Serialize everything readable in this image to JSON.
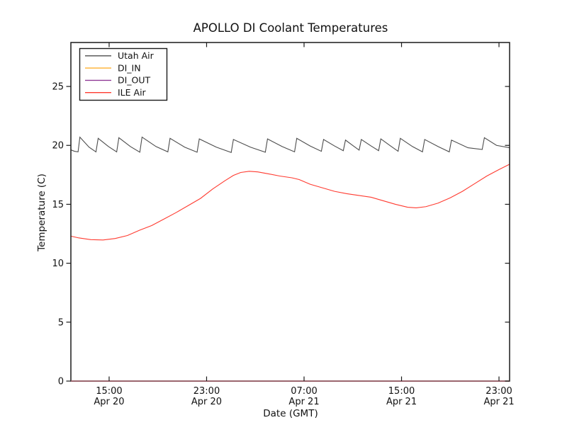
{
  "title": "APOLLO DI Coolant Temperatures",
  "axes": {
    "xlabel": "Date (GMT)",
    "ylabel": "Temperature (C)",
    "x_range_hours": [
      11.86,
      47.87
    ],
    "y_range": [
      0,
      28.73
    ],
    "yticks": [
      0,
      5,
      10,
      15,
      20,
      25
    ],
    "xticks": [
      {
        "hour": 15,
        "time": "15:00",
        "date": "Apr 20"
      },
      {
        "hour": 23,
        "time": "23:00",
        "date": "Apr 20"
      },
      {
        "hour": 31,
        "time": "07:00",
        "date": "Apr 21"
      },
      {
        "hour": 39,
        "time": "15:00",
        "date": "Apr 21"
      },
      {
        "hour": 47,
        "time": "23:00",
        "date": "Apr 21"
      }
    ],
    "grid": false
  },
  "legend": {
    "position": "upper-left",
    "items": [
      {
        "label": "Utah Air",
        "color": "#4d4d4d"
      },
      {
        "label": "DI_IN",
        "color": "#ffb02e"
      },
      {
        "label": "DI_OUT",
        "color": "#8f3a96"
      },
      {
        "label": "ILE Air",
        "color": "#ff3b30"
      }
    ]
  },
  "chart_data": {
    "type": "line",
    "title": "APOLLO DI Coolant Temperatures",
    "xlabel": "Date (GMT)",
    "ylabel": "Temperature (C)",
    "x_unit": "hours since Apr 20 00:00 GMT",
    "xlim": [
      11.86,
      47.87
    ],
    "ylim": [
      0,
      28.73
    ],
    "legend_position": "upper-left",
    "grid": false,
    "series": [
      {
        "name": "Utah Air",
        "color": "#4d4d4d",
        "overlay": false,
        "points": [
          [
            11.86,
            19.62
          ],
          [
            12.15,
            19.5
          ],
          [
            12.45,
            19.45
          ],
          [
            12.6,
            20.7
          ],
          [
            13.35,
            19.85
          ],
          [
            13.92,
            19.45
          ],
          [
            14.1,
            20.6
          ],
          [
            14.95,
            19.9
          ],
          [
            15.62,
            19.45
          ],
          [
            15.8,
            20.65
          ],
          [
            16.75,
            19.9
          ],
          [
            17.52,
            19.42
          ],
          [
            17.7,
            20.7
          ],
          [
            18.85,
            19.9
          ],
          [
            19.82,
            19.45
          ],
          [
            20.0,
            20.6
          ],
          [
            21.2,
            19.85
          ],
          [
            22.22,
            19.42
          ],
          [
            22.4,
            20.55
          ],
          [
            23.8,
            19.85
          ],
          [
            25.02,
            19.4
          ],
          [
            25.2,
            20.5
          ],
          [
            26.6,
            19.85
          ],
          [
            27.82,
            19.42
          ],
          [
            28.0,
            20.55
          ],
          [
            29.2,
            19.9
          ],
          [
            30.22,
            19.45
          ],
          [
            30.4,
            20.6
          ],
          [
            31.5,
            19.95
          ],
          [
            32.42,
            19.5
          ],
          [
            32.6,
            20.5
          ],
          [
            33.5,
            19.95
          ],
          [
            34.22,
            19.55
          ],
          [
            34.4,
            20.45
          ],
          [
            35.05,
            19.95
          ],
          [
            35.52,
            19.6
          ],
          [
            35.7,
            20.5
          ],
          [
            36.5,
            19.95
          ],
          [
            37.12,
            19.55
          ],
          [
            37.3,
            20.55
          ],
          [
            38.1,
            19.95
          ],
          [
            38.72,
            19.5
          ],
          [
            38.9,
            20.6
          ],
          [
            39.9,
            19.9
          ],
          [
            40.72,
            19.45
          ],
          [
            40.9,
            20.5
          ],
          [
            42.0,
            19.9
          ],
          [
            42.92,
            19.45
          ],
          [
            43.1,
            20.45
          ],
          [
            44.45,
            19.8
          ],
          [
            45.62,
            19.65
          ],
          [
            45.8,
            20.65
          ],
          [
            46.8,
            20.0
          ],
          [
            47.87,
            19.8
          ]
        ]
      },
      {
        "name": "DI_IN",
        "color": "#ffb02e",
        "overlay": true,
        "points": [
          [
            11.86,
            0
          ],
          [
            47.87,
            0
          ]
        ]
      },
      {
        "name": "DI_OUT",
        "color": "#8f3a96",
        "overlay": true,
        "points": [
          [
            11.86,
            0
          ],
          [
            47.87,
            0
          ]
        ]
      },
      {
        "name": "ILE Air",
        "color": "#ff3b30",
        "overlay": false,
        "points": [
          [
            11.86,
            12.3
          ],
          [
            12.5,
            12.15
          ],
          [
            13.5,
            12.0
          ],
          [
            14.5,
            11.97
          ],
          [
            15.5,
            12.1
          ],
          [
            16.5,
            12.35
          ],
          [
            17.5,
            12.8
          ],
          [
            18.5,
            13.2
          ],
          [
            19.5,
            13.75
          ],
          [
            20.5,
            14.3
          ],
          [
            21.5,
            14.9
          ],
          [
            22.5,
            15.5
          ],
          [
            23.5,
            16.3
          ],
          [
            24.5,
            17.0
          ],
          [
            25.2,
            17.45
          ],
          [
            25.8,
            17.7
          ],
          [
            26.5,
            17.8
          ],
          [
            27.2,
            17.75
          ],
          [
            28.0,
            17.6
          ],
          [
            29.0,
            17.4
          ],
          [
            30.0,
            17.25
          ],
          [
            30.6,
            17.1
          ],
          [
            31.5,
            16.7
          ],
          [
            32.5,
            16.4
          ],
          [
            33.5,
            16.1
          ],
          [
            34.5,
            15.9
          ],
          [
            35.5,
            15.75
          ],
          [
            36.5,
            15.6
          ],
          [
            37.5,
            15.3
          ],
          [
            38.5,
            15.0
          ],
          [
            39.5,
            14.75
          ],
          [
            40.2,
            14.7
          ],
          [
            41.0,
            14.8
          ],
          [
            42.0,
            15.1
          ],
          [
            43.0,
            15.55
          ],
          [
            44.0,
            16.1
          ],
          [
            45.0,
            16.75
          ],
          [
            46.0,
            17.4
          ],
          [
            47.0,
            17.95
          ],
          [
            47.87,
            18.4
          ]
        ]
      }
    ]
  }
}
